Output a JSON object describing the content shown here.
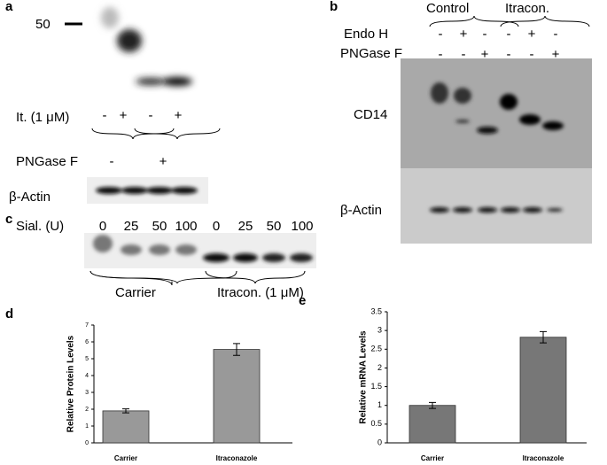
{
  "panels": {
    "a": {
      "letter": "a",
      "marker": "50",
      "treatment": "It. (1 μM)",
      "treatment_signs": [
        "-",
        "+",
        "-",
        "+"
      ],
      "enzyme": "PNGase F",
      "enzyme_signs": [
        "-",
        "+"
      ],
      "loading": "β-Actin"
    },
    "b": {
      "letter": "b",
      "groups": [
        "Control",
        "Itracon."
      ],
      "rows": [
        {
          "label": "Endo H",
          "signs": [
            "-",
            "+",
            "-",
            "-",
            "+",
            "-"
          ]
        },
        {
          "label": "PNGase F",
          "signs": [
            "-",
            "-",
            "+",
            "-",
            "-",
            "+"
          ]
        }
      ],
      "target": "CD14",
      "loading": "β-Actin"
    },
    "c": {
      "letter": "c",
      "axis_label": "Sial. (U)",
      "doses": [
        "0",
        "25",
        "50",
        "100",
        "0",
        "25",
        "50",
        "100"
      ],
      "groups": [
        "Carrier",
        "Itracon. (1 μM)"
      ]
    }
  },
  "chart_data": [
    {
      "type": "bar",
      "panel": "d",
      "ylabel": "Relative Protein Levels",
      "categories": [
        "Carrier",
        "Itraconazole"
      ],
      "values": [
        1.9,
        5.55
      ],
      "errors": [
        0.12,
        0.35
      ],
      "color": "#999999",
      "ylim": [
        0,
        7
      ],
      "yticks": [
        0,
        1,
        2,
        3,
        4,
        5,
        6,
        7
      ]
    },
    {
      "type": "bar",
      "panel": "e",
      "ylabel": "Relative mRNA Levels",
      "categories": [
        "Carrier",
        "Itraconazole"
      ],
      "values": [
        1.0,
        2.82
      ],
      "errors": [
        0.08,
        0.15
      ],
      "color": "#777777",
      "ylim": [
        0,
        3.5
      ],
      "yticks": [
        0,
        0.5,
        1,
        1.5,
        2,
        2.5,
        3,
        3.5
      ]
    }
  ]
}
